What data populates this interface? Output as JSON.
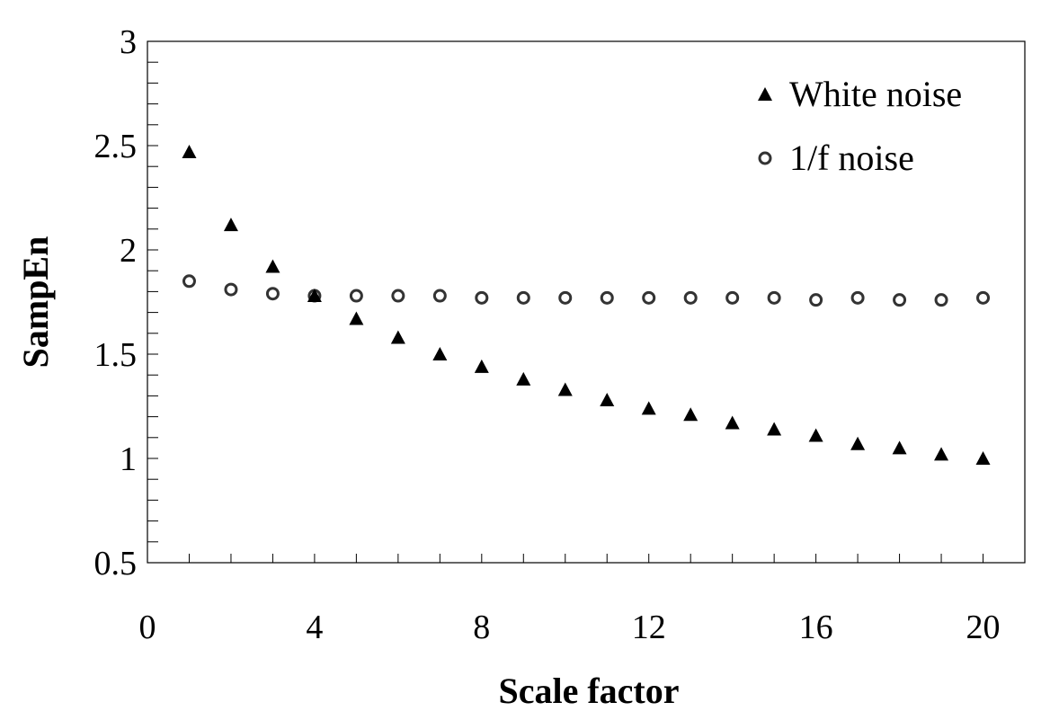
{
  "chart_data": {
    "type": "scatter",
    "title": "",
    "xlabel": "Scale factor",
    "ylabel": "SampEn",
    "xlim": [
      0,
      21
    ],
    "ylim": [
      0.5,
      3
    ],
    "xticks": [
      0,
      4,
      8,
      12,
      16,
      20
    ],
    "xtick_labels": [
      "0",
      "4",
      "8",
      "12",
      "16",
      "20"
    ],
    "yticks": [
      0.5,
      1,
      1.5,
      2,
      2.5,
      3
    ],
    "ytick_labels": [
      "0.5",
      "1",
      "1.5",
      "2",
      "2.5",
      "3"
    ],
    "grid": false,
    "legend_position": "top-right",
    "series": [
      {
        "name": "White noise",
        "marker": "filled-triangle",
        "color": "#000000",
        "x": [
          1,
          2,
          3,
          4,
          5,
          6,
          7,
          8,
          9,
          10,
          11,
          12,
          13,
          14,
          15,
          16,
          17,
          18,
          19,
          20
        ],
        "y": [
          2.47,
          2.12,
          1.92,
          1.78,
          1.67,
          1.58,
          1.5,
          1.44,
          1.38,
          1.33,
          1.28,
          1.24,
          1.21,
          1.17,
          1.14,
          1.11,
          1.07,
          1.05,
          1.02,
          1.0
        ]
      },
      {
        "name": "1/f noise",
        "marker": "open-circle",
        "color": "#333333",
        "x": [
          1,
          2,
          3,
          4,
          5,
          6,
          7,
          8,
          9,
          10,
          11,
          12,
          13,
          14,
          15,
          16,
          17,
          18,
          19,
          20
        ],
        "y": [
          1.85,
          1.81,
          1.79,
          1.78,
          1.78,
          1.78,
          1.78,
          1.77,
          1.77,
          1.77,
          1.77,
          1.77,
          1.77,
          1.77,
          1.77,
          1.76,
          1.77,
          1.76,
          1.76,
          1.77
        ]
      }
    ]
  }
}
